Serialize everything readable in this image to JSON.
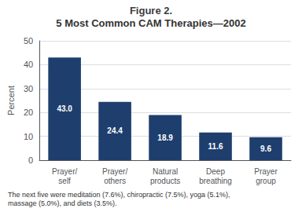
{
  "chart_data": {
    "type": "bar",
    "title": "Figure 2.",
    "subtitle": "5 Most Common CAM Therapies—2002",
    "categories": [
      "Prayer/\nself",
      "Prayer/\nothers",
      "Natural\nproducts",
      "Deep\nbreathing",
      "Prayer\ngroup"
    ],
    "values": [
      43.0,
      24.4,
      18.9,
      11.6,
      9.6
    ],
    "value_labels": [
      "43.0",
      "24.4",
      "18.9",
      "11.6",
      "9.6"
    ],
    "color": "#1e3f6e",
    "ylabel": "Percent",
    "ylim": [
      0,
      50
    ],
    "yticks": [
      0,
      10,
      20,
      30,
      40,
      50
    ],
    "grid": true,
    "data_labels": true,
    "annotations": [
      "The next five were meditation (7.6%), chiropractic (7.5%), yoga (5.1%),\nmassage (5.0%), and diets (3.5%)."
    ]
  }
}
